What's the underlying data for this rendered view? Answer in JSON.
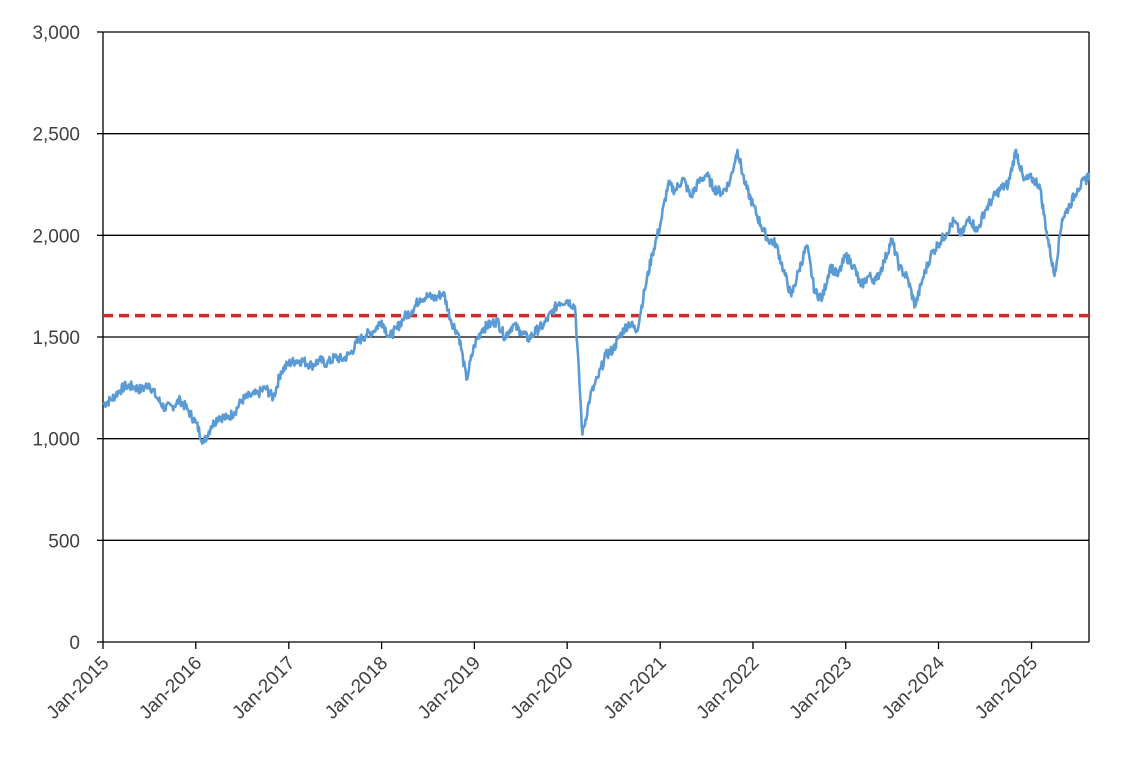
{
  "chart_data": {
    "type": "line",
    "title": "",
    "xlabel": "",
    "ylabel": "",
    "ylim": [
      0,
      3000
    ],
    "xlim": [
      "2015-01-01",
      "2025-08-15"
    ],
    "y_ticks": [
      0,
      500,
      1000,
      1500,
      2000,
      2500,
      3000
    ],
    "y_tick_labels": [
      "0",
      "500",
      "1,000",
      "1,500",
      "2,000",
      "2,500",
      "3,000"
    ],
    "x_ticks": [
      "2015-01-01",
      "2016-01-01",
      "2017-01-01",
      "2018-01-01",
      "2019-01-01",
      "2020-01-01",
      "2021-01-01",
      "2022-01-01",
      "2023-01-01",
      "2024-01-01",
      "2025-01-01"
    ],
    "x_tick_labels": [
      "Jan-2015",
      "Jan-2016",
      "Jan-2017",
      "Jan-2018",
      "Jan-2019",
      "Jan-2020",
      "Jan-2021",
      "Jan-2022",
      "Jan-2023",
      "Jan-2024",
      "Jan-2025"
    ],
    "grid": "horizontal",
    "legend": "none",
    "series": [
      {
        "color": "#5B9BD5",
        "points": [
          [
            "2015-01-01",
            1170
          ],
          [
            "2015-02-01",
            1190
          ],
          [
            "2015-03-01",
            1230
          ],
          [
            "2015-04-01",
            1260
          ],
          [
            "2015-05-01",
            1255
          ],
          [
            "2015-06-01",
            1240
          ],
          [
            "2015-07-01",
            1270
          ],
          [
            "2015-08-01",
            1200
          ],
          [
            "2015-09-01",
            1150
          ],
          [
            "2015-10-01",
            1160
          ],
          [
            "2015-11-01",
            1190
          ],
          [
            "2015-12-01",
            1140
          ],
          [
            "2016-01-01",
            1080
          ],
          [
            "2016-02-01",
            980
          ],
          [
            "2016-03-01",
            1060
          ],
          [
            "2016-04-01",
            1110
          ],
          [
            "2016-05-01",
            1100
          ],
          [
            "2016-06-01",
            1130
          ],
          [
            "2016-07-01",
            1190
          ],
          [
            "2016-08-01",
            1210
          ],
          [
            "2016-09-01",
            1220
          ],
          [
            "2016-10-01",
            1250
          ],
          [
            "2016-11-01",
            1200
          ],
          [
            "2016-12-01",
            1330
          ],
          [
            "2017-01-01",
            1370
          ],
          [
            "2017-02-01",
            1385
          ],
          [
            "2017-03-01",
            1380
          ],
          [
            "2017-04-01",
            1360
          ],
          [
            "2017-05-01",
            1385
          ],
          [
            "2017-06-01",
            1370
          ],
          [
            "2017-07-01",
            1400
          ],
          [
            "2017-08-01",
            1390
          ],
          [
            "2017-09-01",
            1420
          ],
          [
            "2017-10-01",
            1480
          ],
          [
            "2017-11-01",
            1510
          ],
          [
            "2017-12-01",
            1530
          ],
          [
            "2018-01-01",
            1580
          ],
          [
            "2018-02-01",
            1500
          ],
          [
            "2018-03-01",
            1540
          ],
          [
            "2018-04-01",
            1600
          ],
          [
            "2018-05-01",
            1630
          ],
          [
            "2018-06-01",
            1690
          ],
          [
            "2018-07-01",
            1700
          ],
          [
            "2018-08-01",
            1690
          ],
          [
            "2018-09-01",
            1720
          ],
          [
            "2018-10-01",
            1580
          ],
          [
            "2018-11-01",
            1510
          ],
          [
            "2018-12-01",
            1290
          ],
          [
            "2019-01-01",
            1460
          ],
          [
            "2019-02-01",
            1540
          ],
          [
            "2019-03-01",
            1560
          ],
          [
            "2019-04-01",
            1580
          ],
          [
            "2019-05-01",
            1500
          ],
          [
            "2019-06-01",
            1560
          ],
          [
            "2019-07-01",
            1530
          ],
          [
            "2019-08-01",
            1490
          ],
          [
            "2019-09-01",
            1530
          ],
          [
            "2019-10-01",
            1560
          ],
          [
            "2019-11-01",
            1620
          ],
          [
            "2019-12-01",
            1670
          ],
          [
            "2020-01-01",
            1680
          ],
          [
            "2020-02-01",
            1650
          ],
          [
            "2020-03-01",
            1020
          ],
          [
            "2020-04-01",
            1210
          ],
          [
            "2020-05-01",
            1300
          ],
          [
            "2020-06-01",
            1410
          ],
          [
            "2020-07-01",
            1440
          ],
          [
            "2020-08-01",
            1520
          ],
          [
            "2020-09-01",
            1570
          ],
          [
            "2020-10-01",
            1530
          ],
          [
            "2020-11-01",
            1730
          ],
          [
            "2020-12-01",
            1910
          ],
          [
            "2021-01-01",
            2050
          ],
          [
            "2021-02-01",
            2250
          ],
          [
            "2021-03-01",
            2220
          ],
          [
            "2021-04-01",
            2280
          ],
          [
            "2021-05-01",
            2190
          ],
          [
            "2021-06-01",
            2260
          ],
          [
            "2021-07-01",
            2300
          ],
          [
            "2021-08-01",
            2230
          ],
          [
            "2021-09-01",
            2210
          ],
          [
            "2021-10-01",
            2260
          ],
          [
            "2021-11-01",
            2420
          ],
          [
            "2021-12-01",
            2250
          ],
          [
            "2022-01-01",
            2150
          ],
          [
            "2022-02-01",
            2050
          ],
          [
            "2022-03-01",
            1980
          ],
          [
            "2022-04-01",
            1960
          ],
          [
            "2022-05-01",
            1830
          ],
          [
            "2022-06-01",
            1700
          ],
          [
            "2022-07-01",
            1830
          ],
          [
            "2022-08-01",
            1950
          ],
          [
            "2022-09-01",
            1720
          ],
          [
            "2022-10-01",
            1690
          ],
          [
            "2022-11-01",
            1850
          ],
          [
            "2022-12-01",
            1800
          ],
          [
            "2023-01-01",
            1900
          ],
          [
            "2023-02-01",
            1850
          ],
          [
            "2023-03-01",
            1750
          ],
          [
            "2023-04-01",
            1800
          ],
          [
            "2023-05-01",
            1780
          ],
          [
            "2023-06-01",
            1870
          ],
          [
            "2023-07-01",
            1980
          ],
          [
            "2023-08-01",
            1840
          ],
          [
            "2023-09-01",
            1790
          ],
          [
            "2023-10-01",
            1650
          ],
          [
            "2023-11-01",
            1790
          ],
          [
            "2023-12-01",
            1900
          ],
          [
            "2024-01-01",
            1960
          ],
          [
            "2024-02-01",
            2010
          ],
          [
            "2024-03-01",
            2070
          ],
          [
            "2024-04-01",
            2000
          ],
          [
            "2024-05-01",
            2090
          ],
          [
            "2024-06-01",
            2020
          ],
          [
            "2024-07-01",
            2120
          ],
          [
            "2024-08-01",
            2180
          ],
          [
            "2024-09-01",
            2230
          ],
          [
            "2024-10-01",
            2250
          ],
          [
            "2024-11-01",
            2420
          ],
          [
            "2024-12-01",
            2270
          ],
          [
            "2025-01-01",
            2280
          ],
          [
            "2025-02-01",
            2250
          ],
          [
            "2025-03-01",
            2020
          ],
          [
            "2025-04-01",
            1800
          ],
          [
            "2025-05-01",
            2080
          ],
          [
            "2025-06-01",
            2150
          ],
          [
            "2025-07-01",
            2230
          ],
          [
            "2025-08-01",
            2270
          ],
          [
            "2025-08-15",
            2300
          ]
        ]
      }
    ],
    "reference_line": {
      "value": 1605,
      "color": "#D62728",
      "style": "dashed"
    }
  }
}
